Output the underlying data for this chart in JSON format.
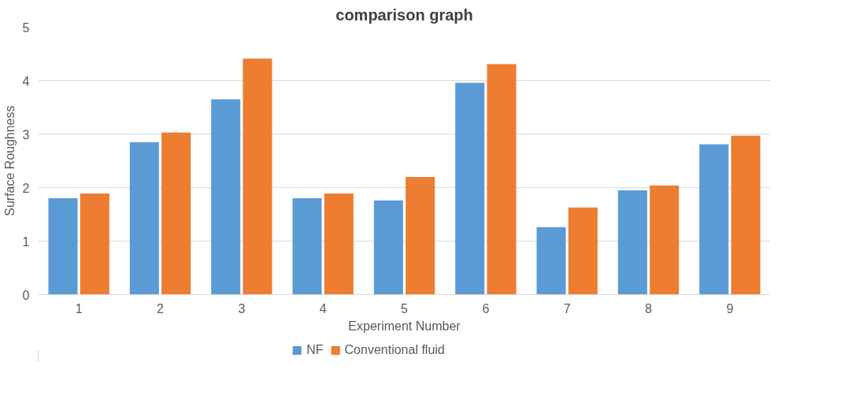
{
  "chart_data": {
    "type": "bar",
    "title": "comparison graph",
    "xlabel": "Experiment Number",
    "ylabel": "Surface Roughness",
    "categories": [
      "1",
      "2",
      "3",
      "4",
      "5",
      "6",
      "7",
      "8",
      "9"
    ],
    "series": [
      {
        "name": "NF",
        "color": "#5b9bd5",
        "values": [
          1.8,
          2.85,
          3.65,
          1.8,
          1.76,
          3.96,
          1.26,
          1.95,
          2.81
        ]
      },
      {
        "name": "Conventional fluid",
        "color": "#ed7d31",
        "values": [
          1.89,
          3.03,
          4.41,
          1.89,
          2.2,
          4.31,
          1.63,
          2.04,
          2.97
        ]
      }
    ],
    "ylim": [
      0,
      5
    ],
    "yticks": [
      0,
      1,
      2,
      3,
      4,
      5
    ],
    "grid": "y",
    "legend": "bottom"
  }
}
